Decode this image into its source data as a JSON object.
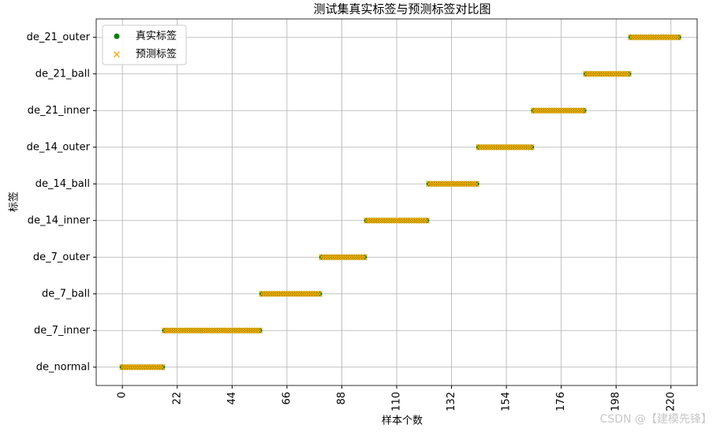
{
  "chart_data": {
    "type": "scatter",
    "title": "测试集真实标签与预测标签对比图",
    "x_label": "样本个数",
    "y_label": "标签",
    "annotation": "CSDN @【建模先锋】",
    "grid": true,
    "legend": "upper left",
    "xlim": [
      -10.5,
      230.5
    ],
    "xticks": [
      0,
      22,
      44,
      66,
      88,
      110,
      132,
      154,
      176,
      198,
      220
    ],
    "ylim": [
      -0.5,
      9.5
    ],
    "yticks": [
      {
        "value": 0,
        "label": "de_normal"
      },
      {
        "value": 1,
        "label": "de_7_inner"
      },
      {
        "value": 2,
        "label": "de_7_ball"
      },
      {
        "value": 3,
        "label": "de_7_outer"
      },
      {
        "value": 4,
        "label": "de_14_inner"
      },
      {
        "value": 5,
        "label": "de_14_ball"
      },
      {
        "value": 6,
        "label": "de_14_outer"
      },
      {
        "value": 7,
        "label": "de_21_inner"
      },
      {
        "value": 8,
        "label": "de_21_ball"
      },
      {
        "value": 9,
        "label": "de_21_outer"
      }
    ],
    "x": [
      0,
      1,
      2,
      3,
      4,
      5,
      6,
      7,
      8,
      9,
      10,
      11,
      12,
      13,
      14,
      15,
      16,
      17,
      18,
      19,
      20,
      21,
      22,
      23,
      24,
      25,
      26,
      27,
      28,
      29,
      30,
      31,
      32,
      33,
      34,
      35,
      36,
      37,
      38,
      39,
      40,
      41,
      42,
      43,
      44,
      45,
      46,
      47,
      48,
      49,
      50,
      51,
      52,
      53,
      54,
      55,
      56,
      57,
      58,
      59,
      60,
      61,
      62,
      63,
      64,
      65,
      66,
      67,
      68,
      69,
      70,
      71,
      72,
      73,
      74,
      75,
      76,
      77,
      78,
      79,
      80,
      81,
      82,
      83,
      84,
      85,
      86,
      87,
      88,
      89,
      90,
      91,
      92,
      93,
      94,
      95,
      96,
      97,
      98,
      99,
      100,
      101,
      102,
      103,
      104,
      105,
      106,
      107,
      108,
      109,
      110,
      111,
      112,
      113,
      114,
      115,
      116,
      117,
      118,
      119,
      120,
      121,
      122,
      123,
      124,
      125,
      126,
      127,
      128,
      129,
      130,
      131,
      132,
      133,
      134,
      135,
      136,
      137,
      138,
      139,
      140,
      141,
      142,
      143,
      144,
      145,
      146,
      147,
      148,
      149,
      150,
      151,
      152,
      153,
      154,
      155,
      156,
      157,
      158,
      159,
      160,
      161,
      162,
      163,
      164,
      165,
      166,
      167,
      168,
      169,
      170,
      171,
      172,
      173,
      174,
      175,
      176,
      177,
      178,
      179,
      180,
      181,
      182,
      183,
      184,
      185,
      186,
      187,
      188,
      189,
      190,
      191,
      192,
      193,
      194,
      195,
      196,
      197,
      198,
      199,
      200,
      201,
      202,
      203,
      204,
      205,
      206,
      207,
      208,
      209,
      210,
      211,
      212,
      213,
      214,
      215,
      216,
      217,
      218,
      219,
      220,
      221,
      222,
      223
    ],
    "series": [
      {
        "name": "真实标签",
        "color": "#008000",
        "marker": "o",
        "values": [
          0,
          0,
          0,
          0,
          0,
          0,
          0,
          0,
          0,
          0,
          0,
          0,
          0,
          0,
          0,
          0,
          0,
          1,
          1,
          1,
          1,
          1,
          1,
          1,
          1,
          1,
          1,
          1,
          1,
          1,
          1,
          1,
          1,
          1,
          1,
          1,
          1,
          1,
          1,
          1,
          1,
          1,
          1,
          1,
          1,
          1,
          1,
          1,
          1,
          1,
          1,
          1,
          1,
          1,
          1,
          1,
          2,
          2,
          2,
          2,
          2,
          2,
          2,
          2,
          2,
          2,
          2,
          2,
          2,
          2,
          2,
          2,
          2,
          2,
          2,
          2,
          2,
          2,
          2,
          2,
          3,
          3,
          3,
          3,
          3,
          3,
          3,
          3,
          3,
          3,
          3,
          3,
          3,
          3,
          3,
          3,
          3,
          3,
          4,
          4,
          4,
          4,
          4,
          4,
          4,
          4,
          4,
          4,
          4,
          4,
          4,
          4,
          4,
          4,
          4,
          4,
          4,
          4,
          4,
          4,
          4,
          4,
          4,
          5,
          5,
          5,
          5,
          5,
          5,
          5,
          5,
          5,
          5,
          5,
          5,
          5,
          5,
          5,
          5,
          5,
          5,
          5,
          5,
          6,
          6,
          6,
          6,
          6,
          6,
          6,
          6,
          6,
          6,
          6,
          6,
          6,
          6,
          6,
          6,
          6,
          6,
          6,
          6,
          6,
          6,
          7,
          7,
          7,
          7,
          7,
          7,
          7,
          7,
          7,
          7,
          7,
          7,
          7,
          7,
          7,
          7,
          7,
          7,
          7,
          7,
          7,
          8,
          8,
          8,
          8,
          8,
          8,
          8,
          8,
          8,
          8,
          8,
          8,
          8,
          8,
          8,
          8,
          8,
          8,
          9,
          9,
          9,
          9,
          9,
          9,
          9,
          9,
          9,
          9,
          9,
          9,
          9,
          9,
          9,
          9,
          9,
          9,
          9,
          9
        ]
      },
      {
        "name": "预测标签",
        "color": "#ffa500",
        "marker": "x",
        "values": [
          0,
          0,
          0,
          0,
          0,
          0,
          0,
          0,
          0,
          0,
          0,
          0,
          0,
          0,
          0,
          0,
          0,
          1,
          1,
          1,
          1,
          1,
          1,
          1,
          1,
          1,
          1,
          1,
          1,
          1,
          1,
          1,
          1,
          1,
          1,
          1,
          1,
          1,
          1,
          1,
          1,
          1,
          1,
          1,
          1,
          1,
          1,
          1,
          1,
          1,
          1,
          1,
          1,
          1,
          1,
          1,
          2,
          2,
          2,
          2,
          2,
          2,
          2,
          2,
          2,
          2,
          2,
          2,
          2,
          2,
          2,
          2,
          2,
          2,
          2,
          2,
          2,
          2,
          2,
          2,
          3,
          3,
          3,
          3,
          3,
          3,
          3,
          3,
          3,
          3,
          3,
          3,
          3,
          3,
          3,
          3,
          3,
          3,
          4,
          4,
          4,
          4,
          4,
          4,
          4,
          4,
          4,
          4,
          4,
          4,
          4,
          4,
          4,
          4,
          4,
          4,
          4,
          4,
          4,
          4,
          4,
          4,
          4,
          5,
          5,
          5,
          5,
          5,
          5,
          5,
          5,
          5,
          5,
          5,
          5,
          5,
          5,
          5,
          5,
          5,
          5,
          5,
          5,
          6,
          6,
          6,
          6,
          6,
          6,
          6,
          6,
          6,
          6,
          6,
          6,
          6,
          6,
          6,
          6,
          6,
          6,
          6,
          6,
          6,
          6,
          7,
          7,
          7,
          7,
          7,
          7,
          7,
          7,
          7,
          7,
          7,
          7,
          7,
          7,
          7,
          7,
          7,
          7,
          7,
          7,
          7,
          8,
          8,
          8,
          8,
          8,
          8,
          8,
          8,
          8,
          8,
          8,
          8,
          8,
          8,
          8,
          8,
          8,
          8,
          9,
          9,
          9,
          9,
          9,
          9,
          9,
          9,
          9,
          9,
          9,
          9,
          9,
          9,
          9,
          9,
          9,
          9,
          9,
          9
        ]
      }
    ]
  }
}
